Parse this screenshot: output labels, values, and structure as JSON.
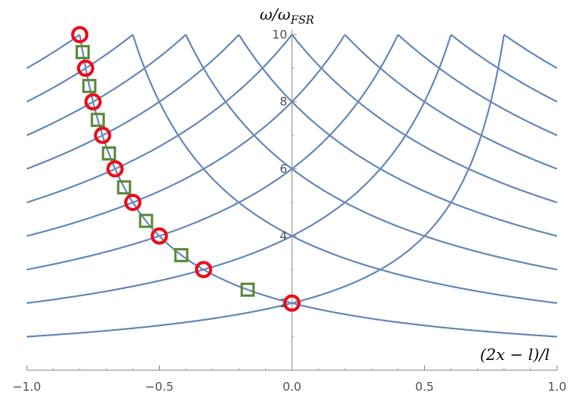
{
  "chart_data": {
    "type": "line",
    "title": "",
    "xlabel": "(2x − l)/l",
    "ylabel_main": "ω/ω",
    "ylabel_sub": "FSR",
    "xlim": [
      -1.0,
      1.0
    ],
    "ylim": [
      0,
      10
    ],
    "x_ticks": [
      -1.0,
      -0.5,
      0.0,
      0.5,
      1.0
    ],
    "x_tick_labels": [
      "−1.0",
      "−0.5",
      "0.0",
      "0.5",
      "1.0"
    ],
    "y_ticks": [
      2,
      4,
      6,
      8,
      10
    ],
    "y_tick_labels": [
      "2",
      "4",
      "6",
      "8",
      "10"
    ],
    "family_description": "y = 2n/(1 + x) and y = 2n/(1 - x), n = 1..10",
    "n_values": [
      1,
      2,
      3,
      4,
      5,
      6,
      7,
      8,
      9,
      10
    ],
    "circle_markers": {
      "color": "#e8101a",
      "points": [
        [
          0.0,
          2
        ],
        [
          -0.333,
          3
        ],
        [
          -0.5,
          4
        ],
        [
          -0.6,
          5
        ],
        [
          -0.667,
          6
        ],
        [
          -0.714,
          7
        ],
        [
          -0.75,
          8
        ],
        [
          -0.778,
          9
        ],
        [
          -0.8,
          10
        ]
      ]
    },
    "square_markers": {
      "color": "#5a8a3a",
      "points": [
        [
          -0.167,
          2.4
        ],
        [
          -0.417,
          3.43
        ],
        [
          -0.55,
          4.45
        ],
        [
          -0.633,
          5.45
        ],
        [
          -0.69,
          6.46
        ],
        [
          -0.732,
          7.46
        ],
        [
          -0.764,
          8.47
        ],
        [
          -0.789,
          9.48
        ]
      ]
    },
    "curve_color": "#6b8cbb",
    "grid": false,
    "legend": "none"
  }
}
